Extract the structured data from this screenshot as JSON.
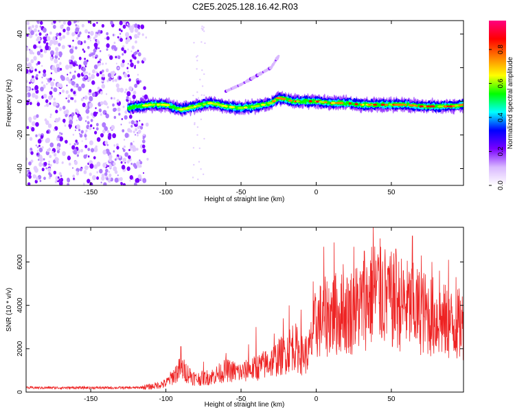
{
  "title": "C2E5.2025.128.16.42.R03",
  "chart_data": [
    {
      "type": "heatmap",
      "xlabel": "Height of straight line (km)",
      "ylabel": "Frequency (Hz)",
      "xlim": [
        -193,
        98
      ],
      "ylim": [
        -50,
        48
      ],
      "xticks": [
        -150,
        -100,
        -50,
        0,
        50
      ],
      "yticks": [
        -40,
        -20,
        0,
        20,
        40
      ],
      "grid": false,
      "colorbar": {
        "label": "Normalized spectral amplitude",
        "range": [
          0,
          0.97
        ],
        "ticks": [
          "0.0",
          "0.2",
          "0.4",
          "0.6",
          "0.8"
        ],
        "colors": [
          "#ffffff",
          "#d9b8ff",
          "#7a00ff",
          "#0000ff",
          "#00ffff",
          "#00ff00",
          "#ffff00",
          "#ff7f00",
          "#ff0000",
          "#ff0080"
        ]
      },
      "noise_region_x": [
        -193,
        -114
      ],
      "line_center": {
        "x": [
          -125,
          -110,
          -100,
          -90,
          -80,
          -70,
          -60,
          -50,
          -40,
          -30,
          -25,
          -20,
          -15,
          -10,
          0,
          10,
          20,
          30,
          40,
          50,
          60,
          70,
          80,
          90,
          98
        ],
        "y": [
          -4,
          -2,
          -2,
          -5,
          -3,
          -1,
          -3,
          -4,
          -3,
          -1,
          2,
          1,
          0,
          0,
          0,
          -1,
          -1,
          -2,
          -2,
          -2,
          -2,
          -3,
          -3,
          -3,
          -2
        ]
      },
      "faint_branch": {
        "x": [
          -60,
          -50,
          -40,
          -30,
          -25
        ],
        "y": [
          6,
          10,
          15,
          20,
          27
        ]
      }
    },
    {
      "type": "line",
      "xlabel": "Height of straight line (km)",
      "ylabel": "SNR (10 * v/v)",
      "xlim": [
        -193,
        98
      ],
      "ylim": [
        0,
        7600
      ],
      "xticks": [
        -150,
        -100,
        -50,
        0,
        50
      ],
      "yticks": [
        0,
        2000,
        4000,
        6000
      ],
      "grid": false,
      "series_color": "#ee2222",
      "envelope": {
        "x": [
          -193,
          -120,
          -110,
          -100,
          -90,
          -80,
          -70,
          -60,
          -50,
          -40,
          -30,
          -20,
          -15,
          -10,
          -5,
          0,
          10,
          20,
          30,
          40,
          50,
          60,
          70,
          80,
          90,
          98
        ],
        "y": [
          200,
          200,
          250,
          400,
          1100,
          600,
          700,
          1000,
          900,
          1100,
          1400,
          1800,
          2200,
          1700,
          1800,
          3200,
          3600,
          3600,
          4000,
          4700,
          4200,
          4000,
          3700,
          3400,
          3100,
          3100
        ]
      },
      "peaks": {
        "x": [
          -90,
          -75,
          -60,
          -45,
          -40,
          -28,
          -22,
          -18,
          -10,
          -2,
          5,
          12,
          18,
          25,
          32,
          38,
          43,
          48,
          53,
          58,
          64,
          70,
          77,
          82,
          88,
          93
        ],
        "y": [
          2100,
          1400,
          1800,
          2200,
          3000,
          2700,
          3400,
          4000,
          3800,
          5100,
          6700,
          6900,
          5900,
          6700,
          6500,
          7600,
          6700,
          5800,
          6600,
          5600,
          7200,
          6300,
          6000,
          5600,
          6100,
          5300
        ]
      }
    }
  ]
}
